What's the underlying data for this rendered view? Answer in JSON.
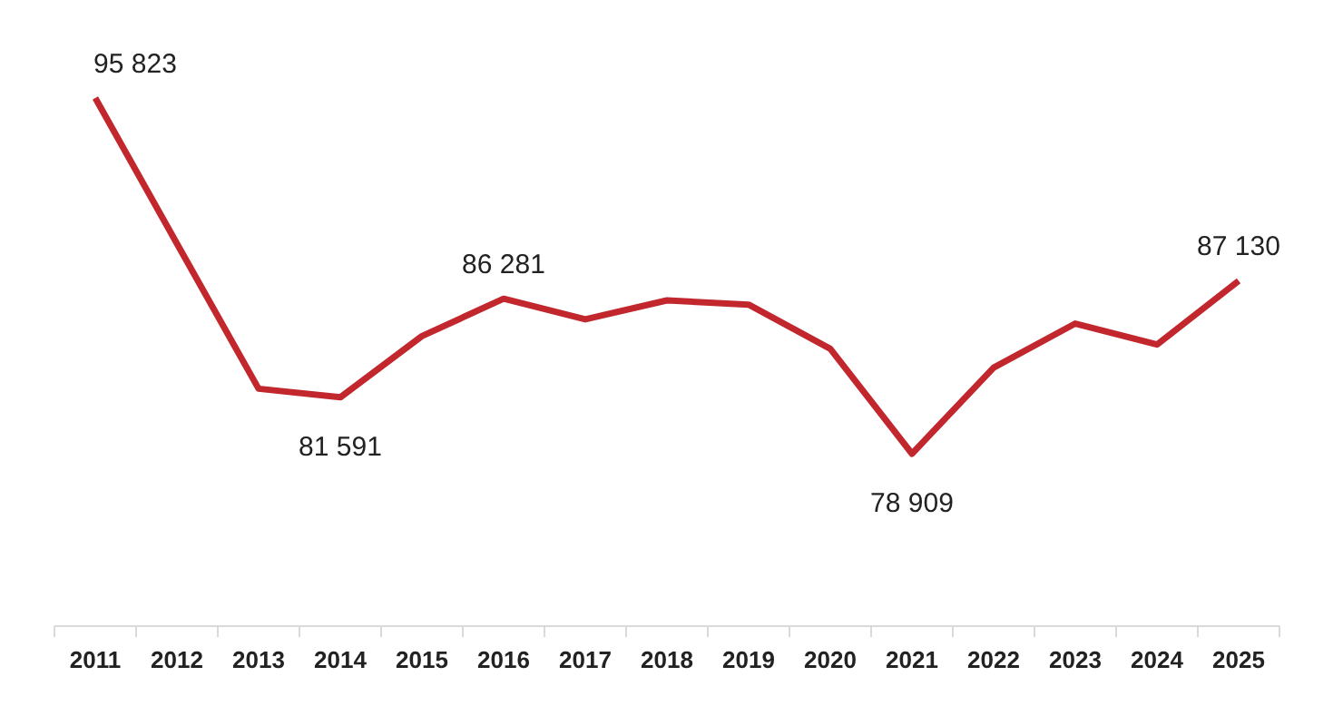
{
  "chart_data": {
    "type": "line",
    "categories": [
      "2011",
      "2012",
      "2013",
      "2014",
      "2015",
      "2016",
      "2017",
      "2018",
      "2019",
      "2020",
      "2021",
      "2022",
      "2023",
      "2024",
      "2025"
    ],
    "series": [
      {
        "color": "#c1272d",
        "values": [
          95823,
          88900,
          82000,
          81591,
          84500,
          86281,
          85300,
          86200,
          86000,
          83900,
          78909,
          83000,
          85100,
          84100,
          87130
        ],
        "value_labels": [
          "95 823",
          null,
          null,
          "81 591",
          null,
          "86 281",
          null,
          null,
          null,
          null,
          "78 909",
          null,
          null,
          null,
          "87 130"
        ]
      }
    ],
    "grid": false,
    "marker": "none",
    "line_style": "solid"
  }
}
